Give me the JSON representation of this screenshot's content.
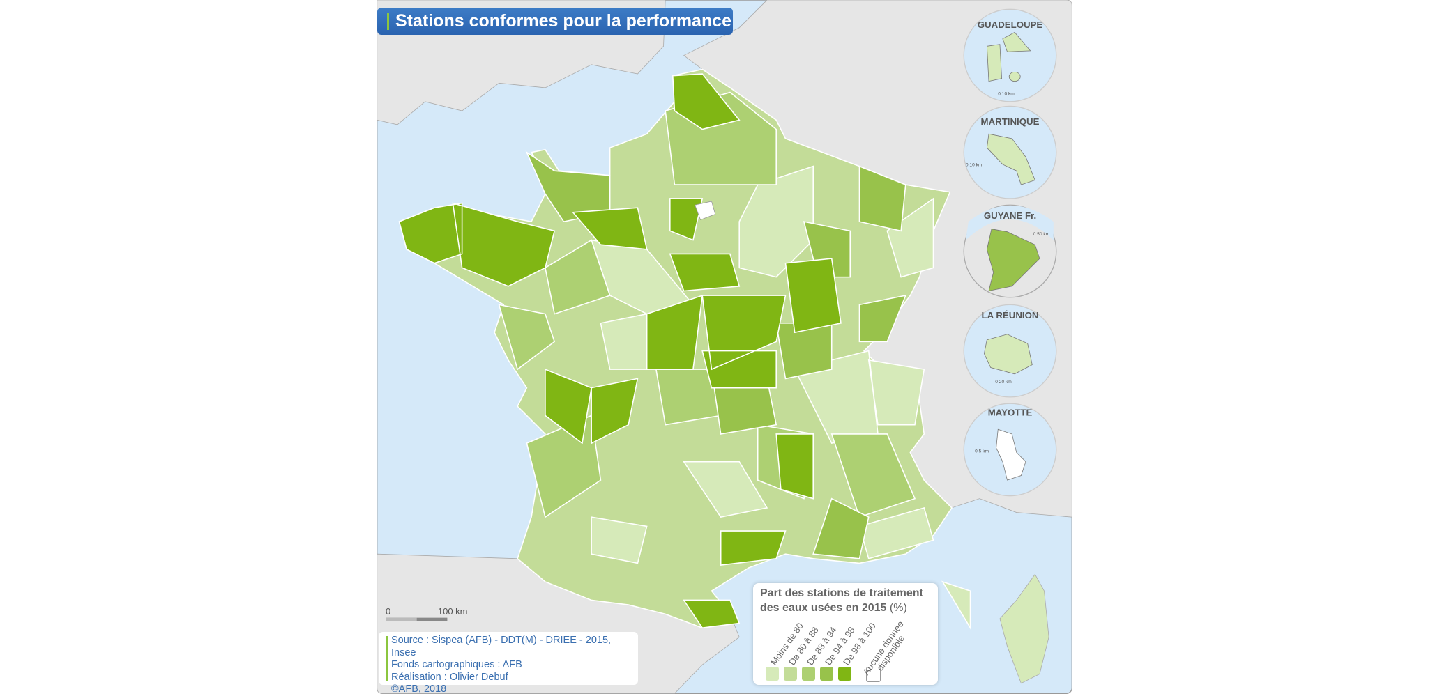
{
  "title": "Stations conformes pour la performance",
  "scale_bar": {
    "zero": "0",
    "distance": "100 km"
  },
  "source": {
    "lines": [
      "Source : Sispea (AFB) - DDT(M) - DRIEE - 2015, Insee",
      "Fonds cartographiques : AFB",
      "Réalisation : Olivier Debuf",
      "©AFB, 2018"
    ]
  },
  "legend": {
    "title_line1": "Part des stations de traitement",
    "title_line2": "des eaux usées en 2015",
    "unit": "(%)",
    "classes": [
      {
        "label": "Moins de 80",
        "color": "#d6eab9"
      },
      {
        "label": "De 80 à 88",
        "color": "#c3dc98"
      },
      {
        "label": "De 88 à 94",
        "color": "#add072"
      },
      {
        "label": "De 94 à 98",
        "color": "#98c24b"
      },
      {
        "label": "De 98 à 100",
        "color": "#80b614"
      },
      {
        "label": "Aucune donnée disponible",
        "color": "#ffffff"
      }
    ]
  },
  "insets": [
    {
      "name": "GUADELOUPE",
      "scale": "0    10 km",
      "class": "Moins de 80"
    },
    {
      "name": "MARTINIQUE",
      "scale": "0    10 km",
      "class": "Moins de 80"
    },
    {
      "name": "GUYANE Fr.",
      "scale": "0    50 km",
      "class": "De 94 à 98"
    },
    {
      "name": "LA RÉUNION",
      "scale": "0    20 km",
      "class": "Moins de 80"
    },
    {
      "name": "MAYOTTE",
      "scale": "0    5 km",
      "class": "Aucune donnée disponible"
    }
  ],
  "colors": {
    "sea": "#d5e9f9",
    "land": "#e6e6e6",
    "title_bg": "#2f6bb6",
    "accent": "#8cc63f"
  }
}
